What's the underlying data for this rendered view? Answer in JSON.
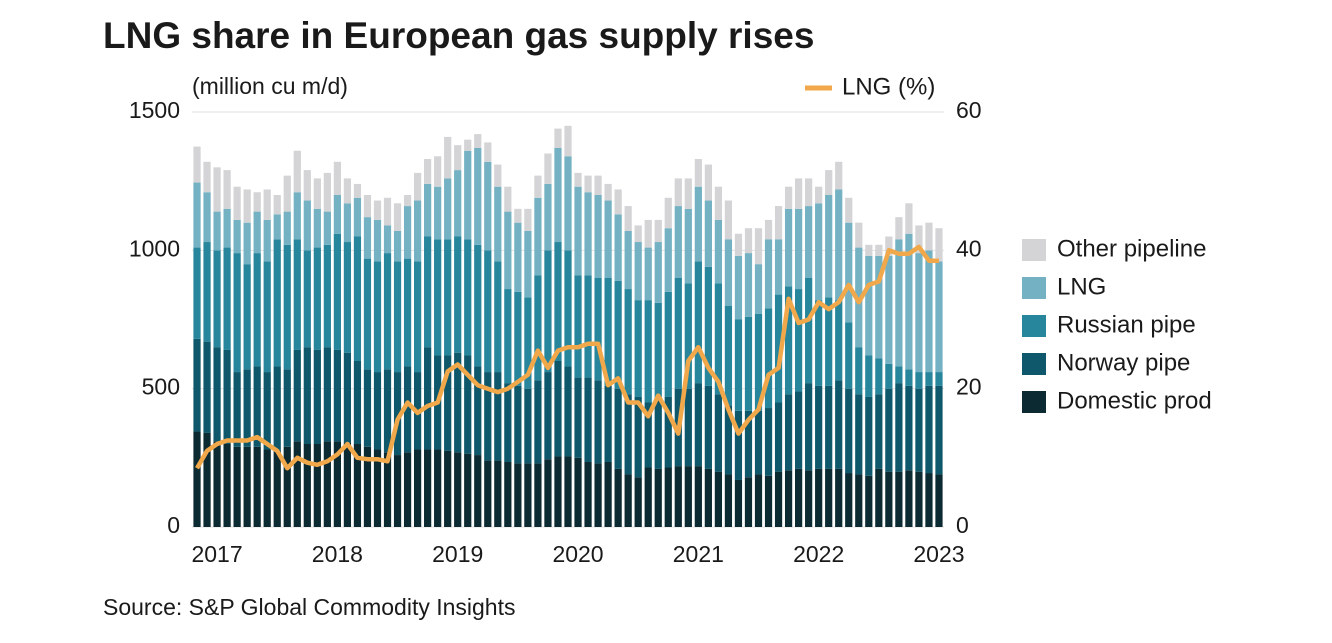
{
  "chart_data": {
    "type": "bar",
    "stacked": true,
    "title": "LNG share in European gas supply rises",
    "ylabel": "(million cu m/d)",
    "source": "Source: S&P Global Commodity Insights",
    "legend": "right",
    "grid": true,
    "ylim": [
      0,
      1500
    ],
    "yticks": [
      0,
      500,
      1000,
      1500
    ],
    "y2lim": [
      0,
      60
    ],
    "y2ticks": [
      0,
      20,
      40,
      60
    ],
    "categories": [
      null,
      null,
      "2017",
      null,
      null,
      null,
      null,
      null,
      null,
      null,
      null,
      null,
      null,
      null,
      "2018",
      null,
      null,
      null,
      null,
      null,
      null,
      null,
      null,
      null,
      null,
      null,
      "2019",
      null,
      null,
      null,
      null,
      null,
      null,
      null,
      null,
      null,
      null,
      null,
      "2020",
      null,
      null,
      null,
      null,
      null,
      null,
      null,
      null,
      null,
      null,
      null,
      "2021",
      null,
      null,
      null,
      null,
      null,
      null,
      null,
      null,
      null,
      null,
      null,
      "2022",
      null,
      null,
      null,
      null,
      null,
      null,
      null,
      null,
      null,
      null,
      null,
      "2023"
    ],
    "series": [
      {
        "name": "Domestic prod",
        "color": "#0c2a32",
        "values": [
          345,
          340,
          310,
          300,
          290,
          290,
          290,
          280,
          275,
          290,
          310,
          300,
          300,
          310,
          310,
          305,
          300,
          290,
          280,
          270,
          260,
          270,
          280,
          280,
          280,
          275,
          270,
          265,
          260,
          240,
          240,
          235,
          230,
          230,
          230,
          245,
          255,
          255,
          250,
          235,
          230,
          235,
          210,
          190,
          180,
          215,
          210,
          215,
          220,
          220,
          220,
          210,
          200,
          190,
          170,
          180,
          190,
          185,
          200,
          205,
          210,
          205,
          210,
          210,
          210,
          195,
          190,
          185,
          210,
          200,
          200,
          205,
          200,
          195,
          190
        ]
      },
      {
        "name": "Norway pipe",
        "color": "#0f586b",
        "values": [
          335,
          330,
          340,
          340,
          270,
          280,
          290,
          280,
          305,
          280,
          330,
          350,
          340,
          340,
          330,
          325,
          300,
          280,
          280,
          300,
          300,
          310,
          280,
          370,
          340,
          345,
          360,
          355,
          320,
          320,
          320,
          285,
          280,
          270,
          300,
          315,
          345,
          325,
          290,
          305,
          300,
          275,
          290,
          290,
          290,
          235,
          260,
          255,
          280,
          280,
          300,
          300,
          280,
          250,
          250,
          240,
          230,
          245,
          250,
          275,
          280,
          315,
          300,
          300,
          320,
          305,
          290,
          285,
          270,
          300,
          320,
          305,
          300,
          315,
          320
        ]
      },
      {
        "name": "Russian pipe",
        "color": "#28869c",
        "values": [
          330,
          360,
          350,
          370,
          430,
          380,
          410,
          400,
          460,
          450,
          400,
          350,
          370,
          370,
          420,
          400,
          450,
          400,
          400,
          420,
          400,
          390,
          400,
          400,
          420,
          420,
          420,
          420,
          440,
          440,
          400,
          340,
          340,
          330,
          380,
          440,
          430,
          420,
          370,
          370,
          370,
          390,
          390,
          380,
          350,
          370,
          340,
          380,
          400,
          380,
          440,
          430,
          400,
          360,
          330,
          340,
          350,
          360,
          390,
          390,
          370,
          380,
          310,
          320,
          290,
          240,
          170,
          150,
          130,
          90,
          60,
          60,
          60,
          50,
          50
        ]
      },
      {
        "name": "LNG",
        "color": "#74b1c3",
        "values": [
          235,
          180,
          140,
          140,
          120,
          150,
          150,
          150,
          90,
          120,
          170,
          180,
          140,
          120,
          140,
          140,
          140,
          150,
          150,
          100,
          110,
          190,
          220,
          190,
          190,
          220,
          240,
          320,
          350,
          320,
          270,
          280,
          250,
          240,
          280,
          240,
          340,
          340,
          320,
          300,
          300,
          280,
          240,
          210,
          210,
          190,
          220,
          230,
          260,
          270,
          270,
          240,
          230,
          240,
          230,
          230,
          180,
          250,
          200,
          280,
          290,
          260,
          350,
          370,
          400,
          360,
          360,
          360,
          370,
          390,
          460,
          490,
          430,
          440,
          400
        ]
      },
      {
        "name": "Other pipeline",
        "color": "#d4d4d6",
        "values": [
          130,
          110,
          160,
          140,
          120,
          120,
          70,
          110,
          70,
          130,
          150,
          110,
          110,
          140,
          120,
          90,
          50,
          80,
          70,
          100,
          100,
          40,
          100,
          90,
          110,
          150,
          90,
          40,
          50,
          70,
          80,
          90,
          50,
          80,
          80,
          110,
          70,
          110,
          50,
          60,
          70,
          60,
          90,
          90,
          60,
          100,
          80,
          110,
          100,
          110,
          100,
          130,
          120,
          140,
          80,
          90,
          130,
          70,
          120,
          80,
          110,
          100,
          60,
          90,
          100,
          90,
          90,
          40,
          40,
          70,
          80,
          110,
          100,
          100,
          120
        ]
      },
      {
        "name": "LNG (%)",
        "type": "line",
        "axis": "y2",
        "color": "#f0a84a",
        "values": [
          8.5,
          11,
          12,
          12.5,
          12.5,
          12.5,
          13,
          12,
          11,
          8.5,
          10,
          9.3,
          9,
          9.5,
          10.5,
          12,
          10,
          9.8,
          9.8,
          9.5,
          15.5,
          18,
          16.5,
          17.5,
          18,
          22.5,
          23.5,
          22,
          20.5,
          20,
          19.5,
          20,
          21,
          22,
          25.5,
          23,
          25.5,
          26,
          26,
          26.5,
          26.5,
          20.5,
          21.5,
          18,
          18,
          16,
          19,
          16.5,
          13.5,
          24,
          26,
          23,
          21,
          17,
          13.5,
          15.5,
          17,
          22,
          23,
          33,
          29.5,
          30,
          32.5,
          31.5,
          32.5,
          35,
          32.5,
          35,
          35.5,
          40,
          39.5,
          39.5,
          40.5,
          38.5,
          38.5
        ]
      }
    ]
  }
}
